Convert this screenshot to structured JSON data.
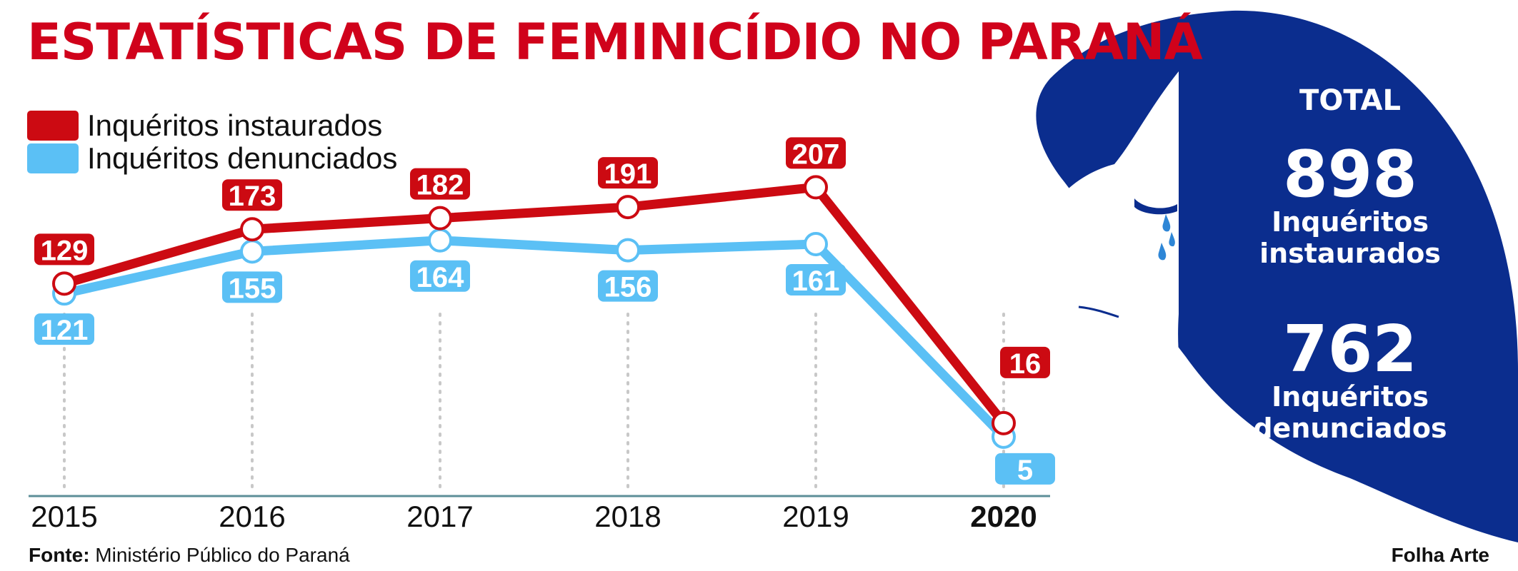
{
  "title": "ESTATÍSTICAS DE FEMINICÍDIO NO PARANÁ",
  "legend": [
    {
      "label": "Inquéritos instaurados",
      "color": "#cc0a12"
    },
    {
      "label": "Inquéritos denunciados",
      "color": "#5bc0f5"
    }
  ],
  "chart_data": {
    "type": "line",
    "title": "ESTATÍSTICAS DE FEMINICÍDIO NO PARANÁ",
    "x": [
      "2015",
      "2016",
      "2017",
      "2018",
      "2019",
      "2020"
    ],
    "highlight_x": "2020",
    "series": [
      {
        "name": "Inquéritos instaurados",
        "color": "#cc0a12",
        "values": [
          129,
          173,
          182,
          191,
          207,
          16
        ]
      },
      {
        "name": "Inquéritos denunciados",
        "color": "#5bc0f5",
        "values": [
          121,
          155,
          164,
          156,
          161,
          5
        ]
      }
    ],
    "data_labels": true,
    "grid": "vertical dotted",
    "legend_position": "top-left"
  },
  "totals": {
    "heading": "TOTAL",
    "instaurados_value": "898",
    "instaurados_label_1": "Inquéritos",
    "instaurados_label_2": "instaurados",
    "denunciados_value": "762",
    "denunciados_label_1": "Inquéritos",
    "denunciados_label_2": "denunciados"
  },
  "source": {
    "prefix": "Fonte:",
    "text": " Ministério Público do Paraná"
  },
  "credit": "Folha Arte",
  "colors": {
    "title": "#d0021b",
    "blob": "#0b2d8e",
    "axis": "#5d8f98"
  }
}
